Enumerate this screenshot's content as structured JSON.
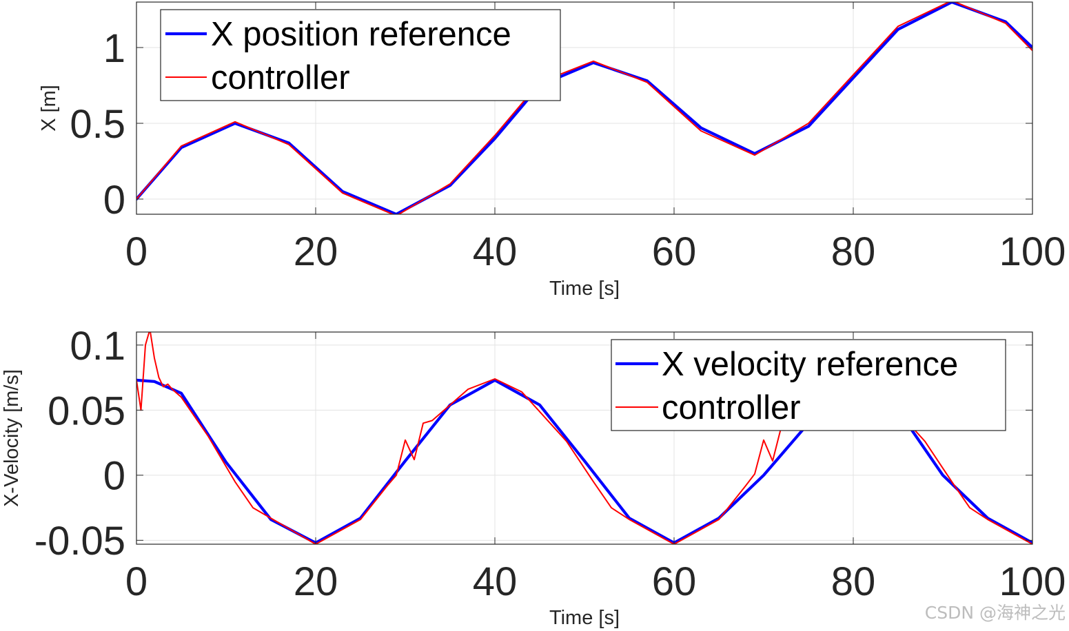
{
  "chart_data": [
    {
      "type": "line",
      "title": "",
      "xlabel": "Time [s]",
      "ylabel": "X [m]",
      "xlim": [
        0,
        100
      ],
      "ylim": [
        -0.1,
        1.3
      ],
      "xticks": [
        0,
        20,
        40,
        60,
        80,
        100
      ],
      "xtick_labels": [
        "0",
        "20",
        "40",
        "60",
        "80",
        "100"
      ],
      "yticks": [
        0,
        0.5,
        1
      ],
      "ytick_labels": [
        "0",
        "0.5",
        "1"
      ],
      "grid": true,
      "legend": "top-left",
      "series": [
        {
          "name": "X position reference",
          "color": "#0000ff",
          "x": [
            0,
            5,
            11,
            17,
            23,
            29,
            35,
            40,
            45,
            51,
            57,
            63,
            69,
            75,
            80,
            85,
            91,
            97,
            100
          ],
          "y": [
            0,
            0.34,
            0.5,
            0.37,
            0.05,
            -0.1,
            0.09,
            0.4,
            0.75,
            0.9,
            0.78,
            0.47,
            0.3,
            0.48,
            0.8,
            1.12,
            1.3,
            1.17,
            1.0
          ]
        },
        {
          "name": "controller",
          "color": "#ff0000",
          "x": [
            0,
            5,
            11,
            17,
            23,
            29,
            35,
            40,
            45,
            51,
            57,
            63,
            69,
            75,
            80,
            85,
            91,
            97,
            100
          ],
          "y": [
            0,
            0.35,
            0.51,
            0.36,
            0.04,
            -0.11,
            0.1,
            0.42,
            0.77,
            0.91,
            0.77,
            0.45,
            0.29,
            0.5,
            0.82,
            1.14,
            1.31,
            1.16,
            0.98
          ]
        }
      ]
    },
    {
      "type": "line",
      "title": "",
      "xlabel": "Time [s]",
      "ylabel": "X-Velocity [m/s]",
      "xlim": [
        0,
        100
      ],
      "ylim": [
        -0.053,
        0.11
      ],
      "xticks": [
        0,
        20,
        40,
        60,
        80,
        100
      ],
      "xtick_labels": [
        "0",
        "20",
        "40",
        "60",
        "80",
        "100"
      ],
      "yticks": [
        -0.05,
        0,
        0.05,
        0.1
      ],
      "ytick_labels": [
        "-0.05",
        "0",
        "0.05",
        "0.1"
      ],
      "grid": true,
      "legend": "top-right",
      "series": [
        {
          "name": "X velocity reference",
          "color": "#0000ff",
          "x": [
            0,
            2,
            5,
            10,
            15,
            20,
            25,
            30,
            35,
            40,
            45,
            50,
            55,
            60,
            65,
            70,
            75,
            80,
            85,
            90,
            95,
            100
          ],
          "y": [
            0.073,
            0.072,
            0.063,
            0.01,
            -0.034,
            -0.052,
            -0.033,
            0.011,
            0.054,
            0.073,
            0.054,
            0.011,
            -0.033,
            -0.052,
            -0.033,
            0.0,
            0.04,
            0.073,
            0.05,
            0.0,
            -0.033,
            -0.052
          ]
        },
        {
          "name": "controller",
          "color": "#ff0000",
          "x": [
            0,
            0.5,
            1,
            1.5,
            2,
            2.5,
            3,
            3.5,
            4,
            5,
            8,
            11,
            13,
            15,
            20,
            25,
            28,
            29,
            30,
            31,
            32,
            33,
            34,
            37,
            40,
            43,
            48,
            51,
            53,
            55,
            60,
            65,
            68,
            69,
            70,
            71,
            72,
            73,
            74,
            77,
            80,
            83,
            88,
            91,
            93,
            95,
            100
          ],
          "y": [
            0.073,
            0.05,
            0.1,
            0.112,
            0.09,
            0.075,
            0.068,
            0.07,
            0.066,
            0.06,
            0.03,
            -0.005,
            -0.025,
            -0.033,
            -0.053,
            -0.034,
            -0.008,
            0.0,
            0.027,
            0.012,
            0.04,
            0.042,
            0.048,
            0.066,
            0.074,
            0.064,
            0.026,
            -0.005,
            -0.025,
            -0.034,
            -0.053,
            -0.034,
            -0.008,
            0.001,
            0.027,
            0.011,
            0.038,
            0.05,
            0.06,
            0.07,
            0.074,
            0.064,
            0.026,
            -0.005,
            -0.025,
            -0.034,
            -0.053
          ]
        }
      ]
    }
  ],
  "watermark": "CSDN @海神之光"
}
